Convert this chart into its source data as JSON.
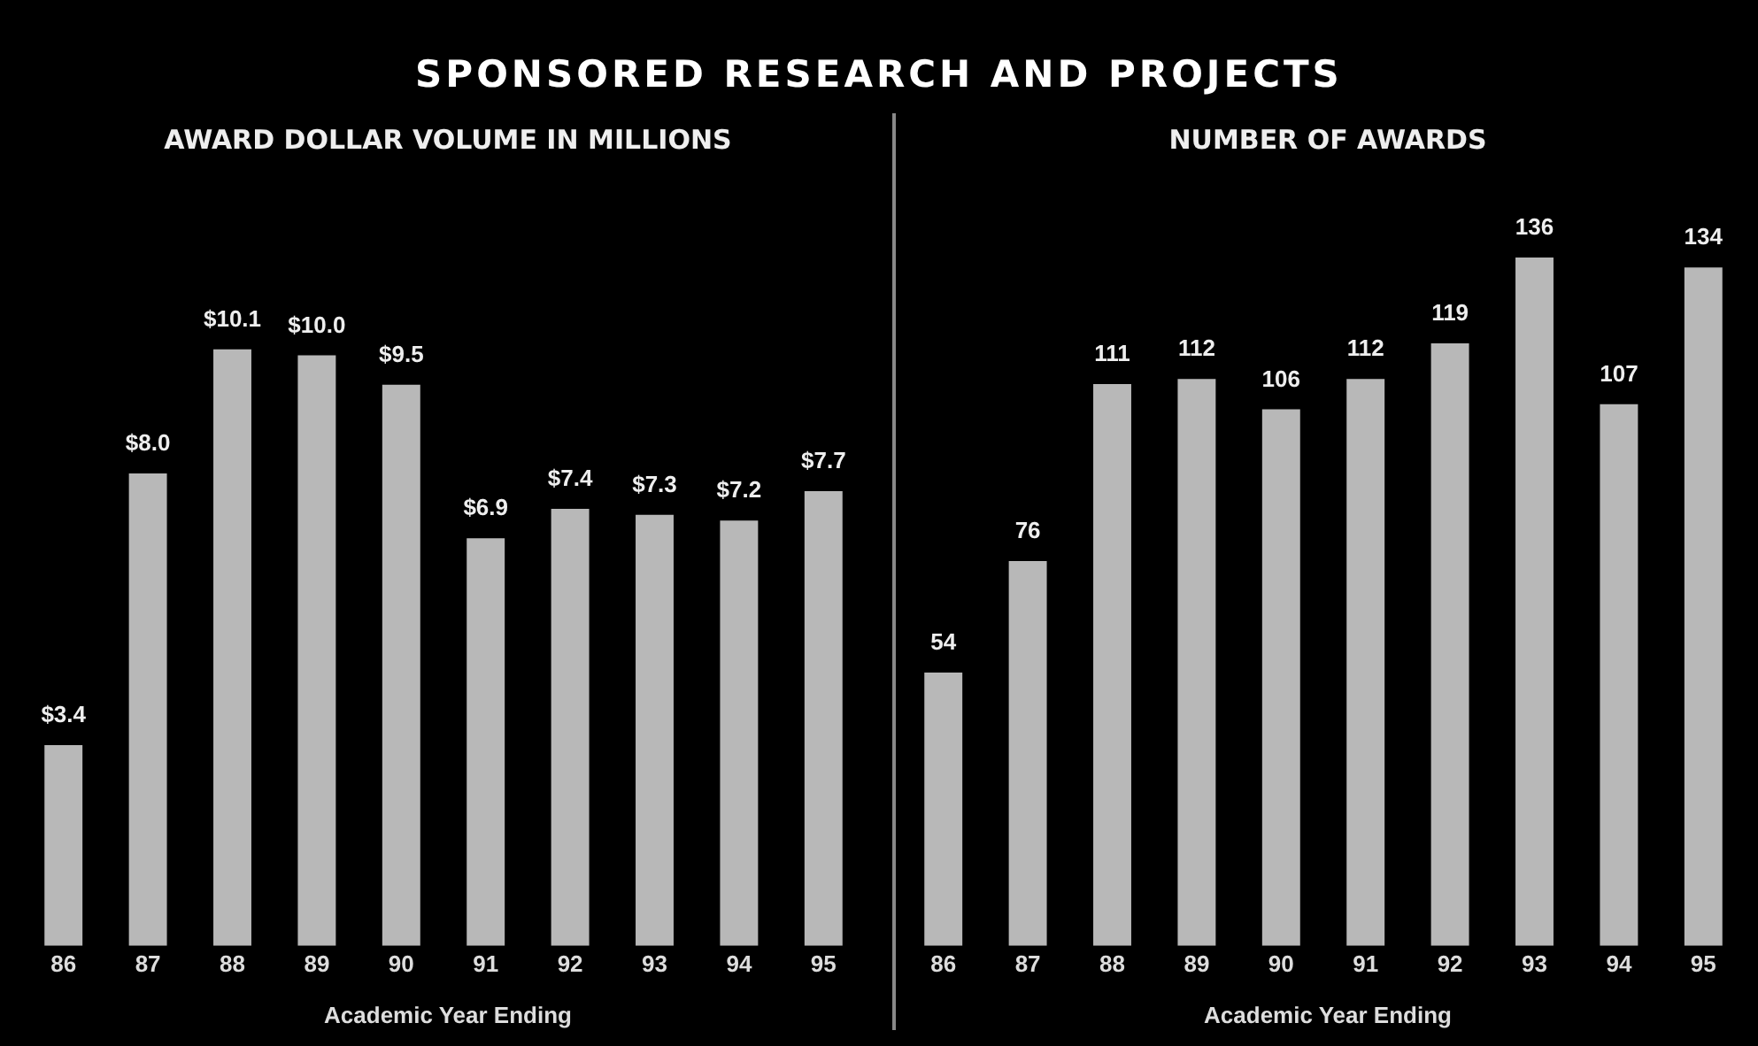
{
  "chart_data": [
    {
      "type": "bar",
      "title": "SPONSORED RESEARCH AND PROJECTS",
      "subtitle": "AWARD DOLLAR VOLUME IN MILLIONS",
      "xlabel": "Academic Year Ending",
      "categories": [
        "86",
        "87",
        "88",
        "89",
        "90",
        "91",
        "92",
        "93",
        "94",
        "95"
      ],
      "values": [
        3.4,
        8.0,
        10.1,
        10.0,
        9.5,
        6.9,
        7.4,
        7.3,
        7.2,
        7.7
      ],
      "value_labels": [
        "$3.4",
        "$8.0",
        "$10.1",
        "$10.0",
        "$9.5",
        "$6.9",
        "$7.4",
        "$7.3",
        "$7.2",
        "$7.7"
      ],
      "color": "#b8b8b8"
    },
    {
      "type": "bar",
      "title": "NUMBER OF AWARDS",
      "xlabel": "Academic Year Ending",
      "categories": [
        "86",
        "87",
        "88",
        "89",
        "90",
        "91",
        "92",
        "93",
        "94",
        "95"
      ],
      "values": [
        54,
        76,
        111,
        112,
        106,
        112,
        119,
        136,
        107,
        134
      ],
      "data_labels": true,
      "color": "#b8b8b8"
    }
  ]
}
